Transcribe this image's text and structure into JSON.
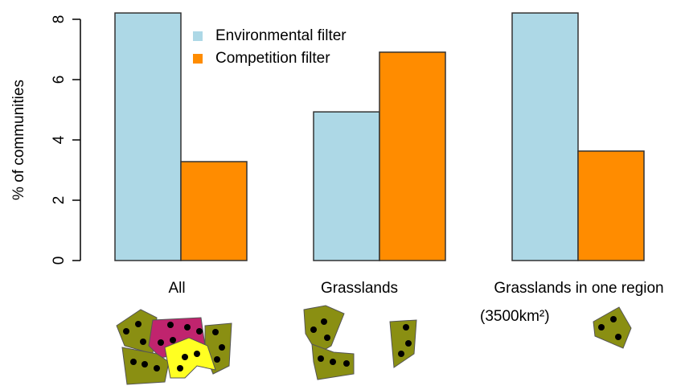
{
  "chart_data": {
    "type": "bar",
    "y_label": "% of communities",
    "categories": [
      "All",
      "Grasslands",
      "Grasslands in one region"
    ],
    "annotation": "(3500km²)",
    "series": [
      {
        "name": "Environmental filter",
        "color": "#add8e6",
        "values": [
          8.21,
          4.93,
          8.21
        ]
      },
      {
        "name": "Competition filter",
        "color": "#ff8c00",
        "values": [
          3.28,
          6.91,
          3.63
        ]
      }
    ],
    "ylim": [
      0,
      8
    ],
    "yticks": [
      0,
      2,
      4,
      6,
      8
    ],
    "grid": false,
    "legend": "top-left"
  }
}
